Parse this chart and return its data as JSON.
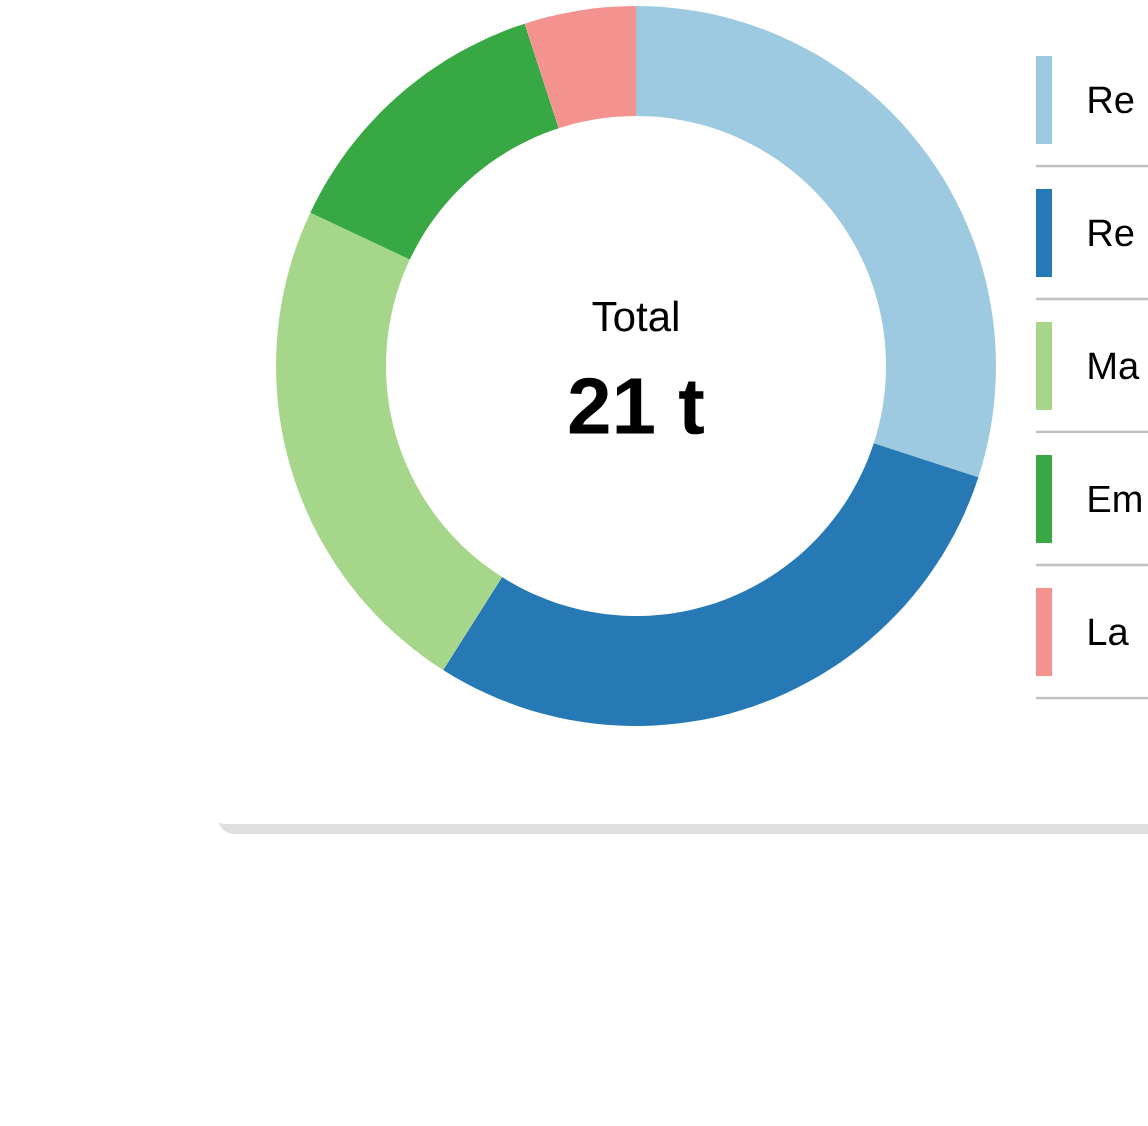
{
  "chart_data": {
    "type": "donut",
    "categories": [
      "Re",
      "Re",
      "Ma",
      "Em",
      "La"
    ],
    "values": [
      30,
      29,
      23,
      13,
      5
    ],
    "colors": [
      "#9ecae1",
      "#2679b5",
      "#a6d68a",
      "#38a845",
      "#f4928f"
    ],
    "annotations": [
      "Total",
      "21 t"
    ],
    "legend": "right"
  }
}
